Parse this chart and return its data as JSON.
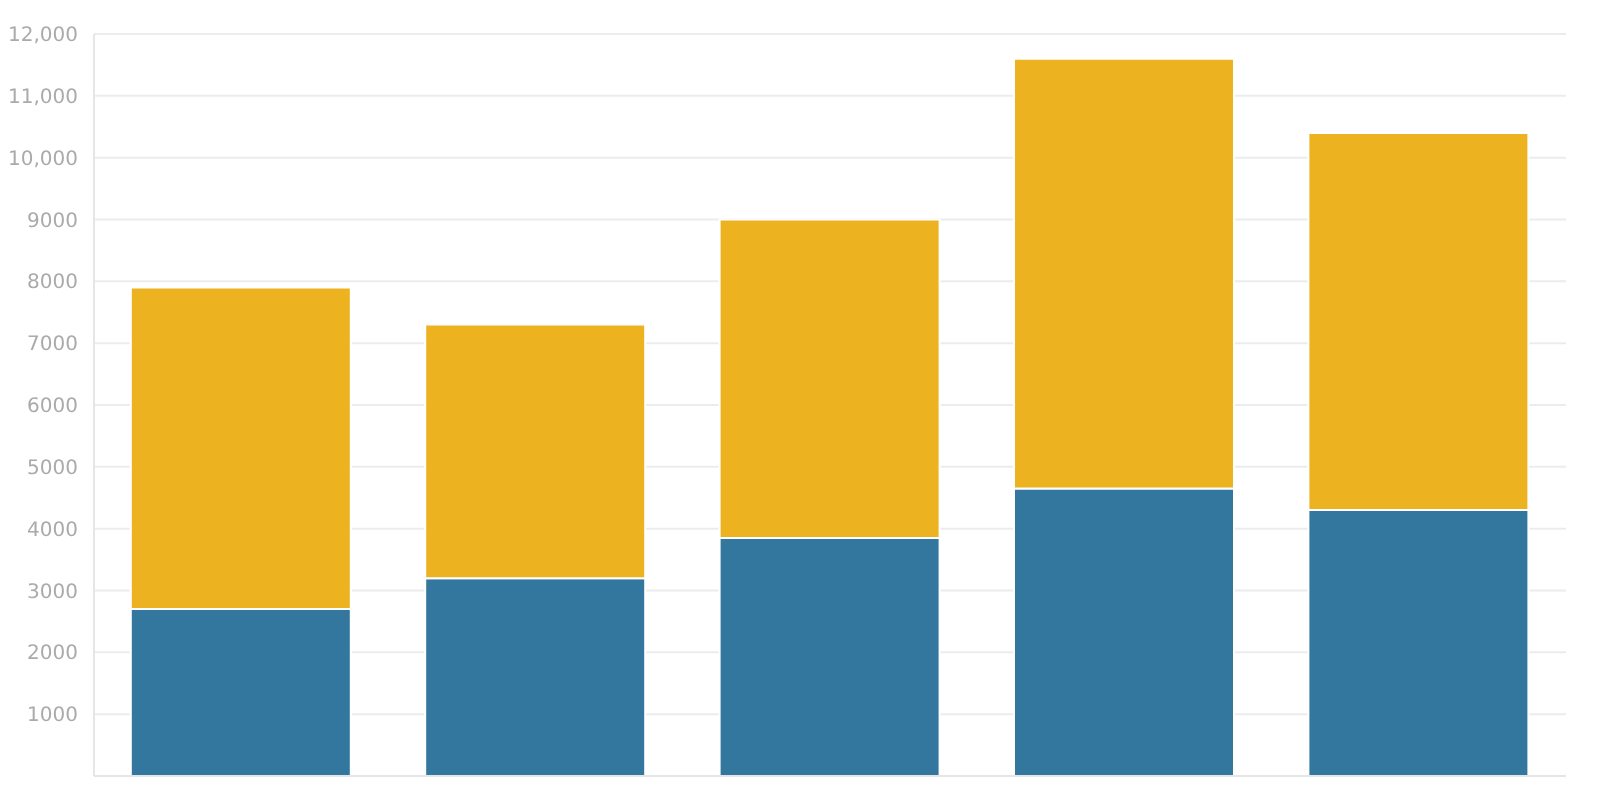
{
  "chart_data": {
    "type": "bar",
    "stacked": true,
    "categories": [
      null,
      null,
      null,
      null,
      null
    ],
    "series": [
      {
        "color": "#33779f",
        "values": [
          2700,
          3200,
          3850,
          4650,
          4300
        ]
      },
      {
        "color": "#edb220",
        "values": [
          5200,
          4100,
          5150,
          6950,
          6100
        ]
      }
    ],
    "ylim": [
      0,
      12000
    ],
    "yticks": [
      1000,
      2000,
      3000,
      4000,
      5000,
      6000,
      7000,
      8000,
      9000,
      {
        "value": 10000,
        "label": "10,000"
      },
      {
        "value": 11000,
        "label": "11,000"
      },
      {
        "value": 12000,
        "label": "12,000"
      }
    ],
    "grid": "y"
  }
}
